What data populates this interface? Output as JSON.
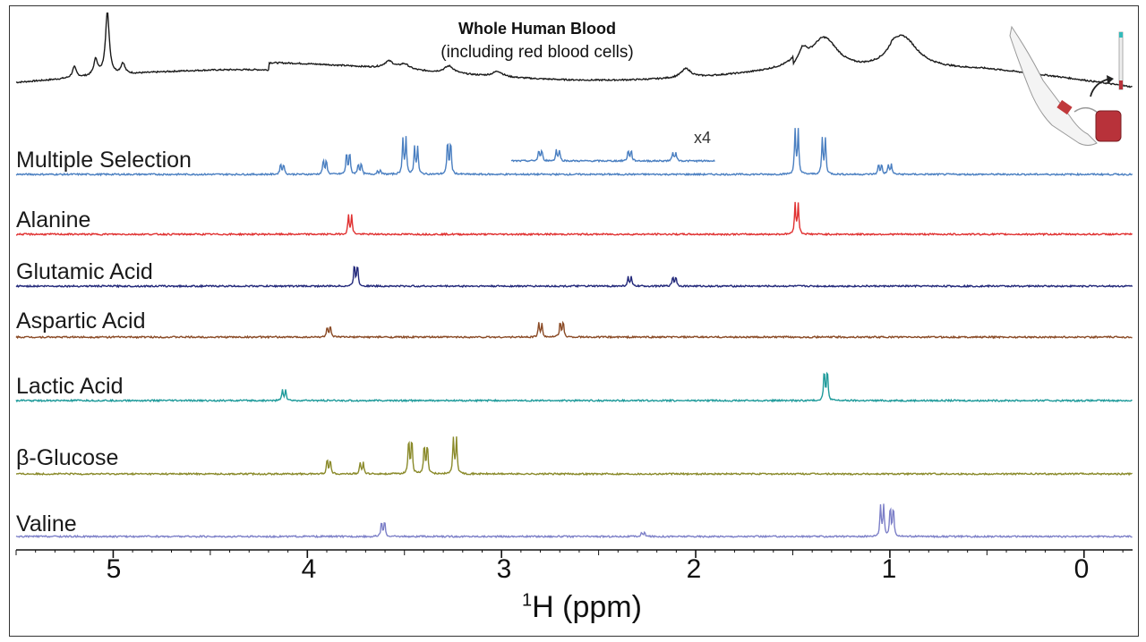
{
  "title": "Whole Human Blood",
  "subtitle": "(including red blood cells)",
  "scale_note": "x4",
  "colors": {
    "blood": "#1a1a1a",
    "multiple": "#4a7fc1",
    "alanine": "#e03030",
    "glutamic": "#22287a",
    "aspartic": "#8a4a25",
    "lactic": "#1f9b9b",
    "glucose": "#8a8a2a",
    "valine": "#7d80c8"
  },
  "chart_data": {
    "type": "line",
    "title": "Whole Human Blood",
    "subtitle": "(including red blood cells)",
    "xlabel_prefix": "1",
    "xlabel": "H (ppm)",
    "xlim": [
      5.5,
      -0.25
    ],
    "x_ticks": [
      5,
      4,
      3,
      2,
      1,
      0
    ],
    "x_tick_labels": [
      "5",
      "4",
      "3",
      "2",
      "1",
      "0"
    ],
    "series": [
      {
        "name": "Whole Human Blood",
        "label": "",
        "color": "#1a1a1a",
        "kind": "broad",
        "peaks": [
          [
            5.03,
            70
          ],
          [
            5.09,
            18
          ],
          [
            4.95,
            12
          ],
          [
            5.2,
            12
          ],
          [
            3.58,
            8
          ],
          [
            3.5,
            6
          ],
          [
            3.27,
            8
          ],
          [
            3.02,
            6
          ],
          [
            2.05,
            10
          ],
          [
            1.34,
            40
          ],
          [
            1.45,
            18
          ],
          [
            0.93,
            35
          ],
          [
            0.98,
            8
          ]
        ]
      },
      {
        "name": "Multiple Selection",
        "label": "Multiple Selection",
        "color": "#4a7fc1",
        "peaks": [
          [
            4.13,
            22
          ],
          [
            3.91,
            30
          ],
          [
            3.79,
            45
          ],
          [
            3.73,
            22
          ],
          [
            3.63,
            8
          ],
          [
            3.5,
            72
          ],
          [
            3.44,
            55
          ],
          [
            3.27,
            68
          ],
          [
            1.48,
            88
          ],
          [
            1.34,
            72
          ],
          [
            1.05,
            20
          ],
          [
            1.0,
            20
          ]
        ],
        "inset": {
          "label": "x4",
          "range": [
            2.95,
            1.9
          ],
          "peaks": [
            [
              2.8,
              22
            ],
            [
              2.71,
              22
            ],
            [
              2.34,
              22
            ],
            [
              2.11,
              18
            ]
          ]
        }
      },
      {
        "name": "Alanine",
        "label": "Alanine",
        "color": "#e03030",
        "peaks": [
          [
            3.78,
            38
          ],
          [
            1.48,
            62
          ]
        ]
      },
      {
        "name": "Glutamic Acid",
        "label": "Glutamic Acid",
        "color": "#22287a",
        "peaks": [
          [
            3.75,
            45
          ],
          [
            2.34,
            18
          ],
          [
            2.11,
            20
          ]
        ]
      },
      {
        "name": "Aspartic Acid",
        "label": "Aspartic Acid",
        "color": "#8a4a25",
        "peaks": [
          [
            3.89,
            22
          ],
          [
            2.8,
            28
          ],
          [
            2.69,
            32
          ]
        ]
      },
      {
        "name": "Lactic Acid",
        "label": "Lactic Acid",
        "color": "#1f9b9b",
        "peaks": [
          [
            4.12,
            22
          ],
          [
            1.33,
            62
          ]
        ]
      },
      {
        "name": "beta-Glucose",
        "label": "β-Glucose",
        "color": "#8a8a2a",
        "peaks": [
          [
            3.89,
            30
          ],
          [
            3.72,
            22
          ],
          [
            3.47,
            72
          ],
          [
            3.39,
            60
          ],
          [
            3.24,
            72
          ]
        ]
      },
      {
        "name": "Valine",
        "label": "Valine",
        "color": "#7d80c8",
        "peaks": [
          [
            3.61,
            30
          ],
          [
            2.27,
            8
          ],
          [
            1.04,
            62
          ],
          [
            0.99,
            60
          ]
        ]
      }
    ]
  }
}
